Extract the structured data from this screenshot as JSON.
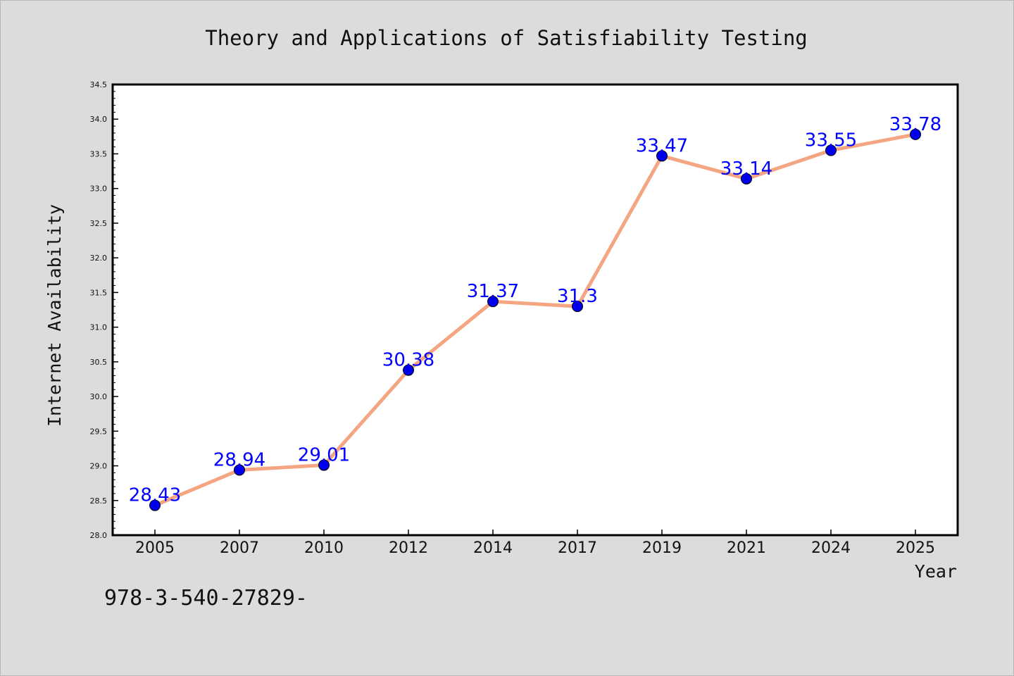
{
  "chart_data": {
    "type": "line",
    "title": "Theory and Applications of Satisfiability Testing",
    "xlabel": "Year",
    "ylabel": "Internet Availability",
    "categories": [
      "2005",
      "2007",
      "2010",
      "2012",
      "2014",
      "2017",
      "2019",
      "2021",
      "2024",
      "2025"
    ],
    "series": [
      {
        "values": [
          28.43,
          28.94,
          29.01,
          30.38,
          31.37,
          31.3,
          33.47,
          33.14,
          33.55,
          33.78
        ],
        "labels": [
          "28.43",
          "28.94",
          "29.01",
          "30.38",
          "31.37",
          "31.3",
          "33.47",
          "33.14",
          "33.55",
          "33.78"
        ]
      }
    ],
    "ylim": [
      28.0,
      34.5
    ],
    "yticks": [
      "28.0",
      "28.5",
      "29.0",
      "29.5",
      "30.0",
      "30.5",
      "31.0",
      "31.5",
      "32.0",
      "32.5",
      "33.0",
      "33.5",
      "34.0",
      "34.5"
    ],
    "grid": false,
    "colors": {
      "line": "#f4a582",
      "marker": "#0000ee",
      "data_label": "#0000ff",
      "plot_background": "#ffffff",
      "figure_background": "#dcdcdc"
    }
  },
  "footer_text": "978-3-540-27829-"
}
